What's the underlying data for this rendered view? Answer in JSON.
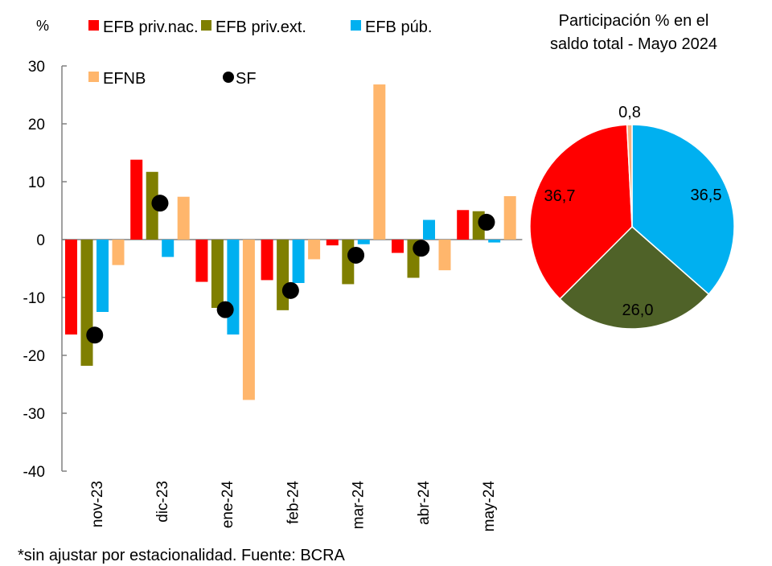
{
  "chart_data": [
    {
      "type": "bar",
      "ylabel": "%",
      "ylim": [
        -40,
        30
      ],
      "yticks": [
        30,
        20,
        10,
        0,
        -10,
        -20,
        -30,
        -40
      ],
      "categories": [
        "nov-23",
        "dic-23",
        "ene-24",
        "feb-24",
        "mar-24",
        "abr-24",
        "may-24"
      ],
      "series": [
        {
          "name": "EFB priv.nac.",
          "kind": "bar",
          "color": "#ff0000",
          "values": [
            -16.4,
            13.8,
            -7.3,
            -7.0,
            -1.0,
            -2.3,
            5.1
          ]
        },
        {
          "name": "EFB priv.ext.",
          "kind": "bar",
          "color": "#7f7f00",
          "values": [
            -21.8,
            11.7,
            -11.8,
            -12.2,
            -7.7,
            -6.6,
            4.9
          ]
        },
        {
          "name": "EFB púb.",
          "kind": "bar",
          "color": "#00b0f0",
          "values": [
            -12.5,
            -3.0,
            -16.4,
            -7.5,
            -0.8,
            3.4,
            -0.5
          ]
        },
        {
          "name": "EFNB",
          "kind": "bar",
          "color": "#ffb66c",
          "values": [
            -4.4,
            7.4,
            -27.7,
            -3.4,
            26.8,
            -5.3,
            7.5
          ]
        },
        {
          "name": "SF",
          "kind": "dot",
          "color": "#000000",
          "values": [
            -16.5,
            6.3,
            -12.1,
            -8.8,
            -2.7,
            -1.5,
            3.0
          ]
        }
      ],
      "grid": false,
      "legend_position": "top"
    },
    {
      "type": "pie",
      "title_lines": [
        "Participación % en el",
        "saldo total - Mayo 2024"
      ],
      "slices": [
        {
          "name": "EFB púb.",
          "value": 36.5,
          "label": "36,5",
          "color": "#00b0f0"
        },
        {
          "name": "EFB priv.ext.",
          "value": 26.0,
          "label": "26,0",
          "color": "#4f6228"
        },
        {
          "name": "EFB priv.nac.",
          "value": 36.7,
          "label": "36,7",
          "color": "#ff0000"
        },
        {
          "name": "EFNB",
          "value": 0.8,
          "label": "0,8",
          "color": "#f4b183"
        }
      ]
    }
  ],
  "footnote": "*sin ajustar por estacionalidad. Fuente: BCRA"
}
